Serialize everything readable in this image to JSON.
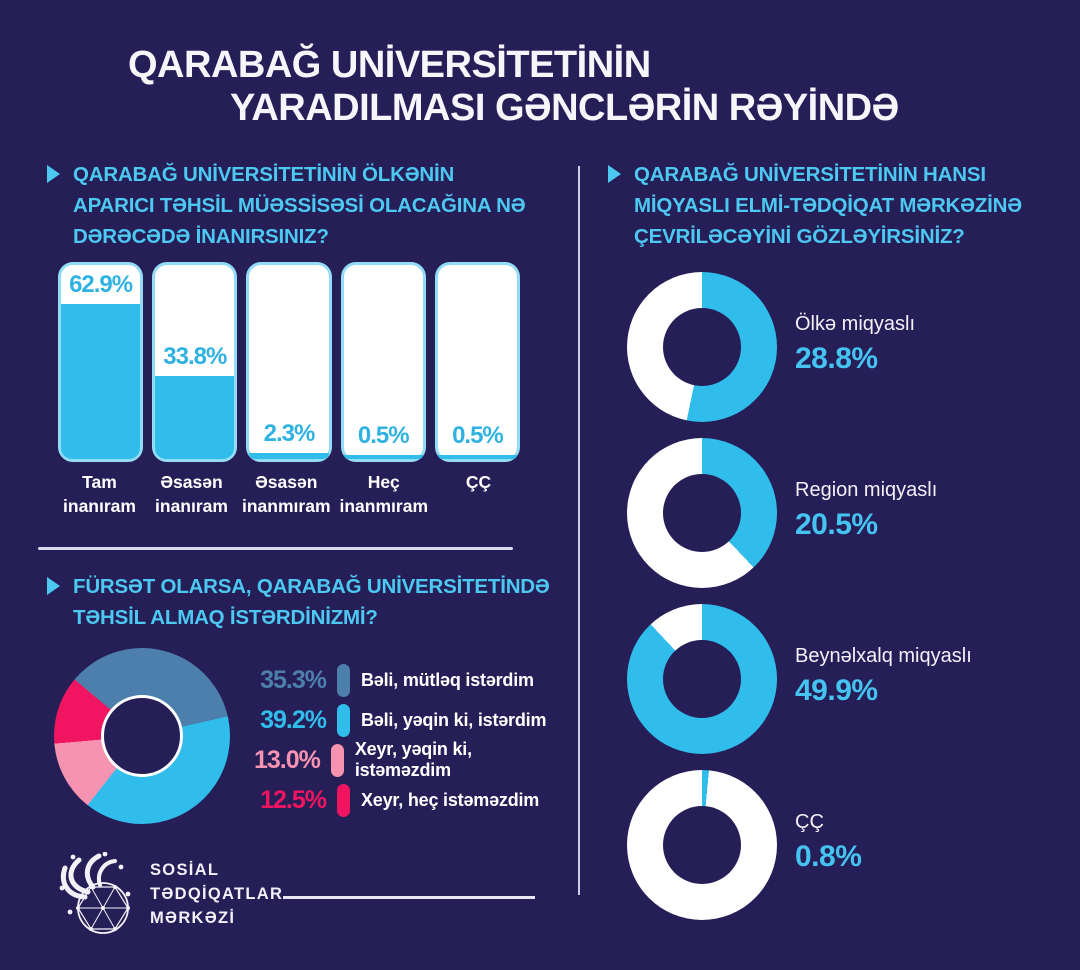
{
  "title": {
    "line1": "QARABAĞ UNİVERSİTETİNİN",
    "line2": "YARADILMASI GƏNCLƏRİN RƏYİNDƏ"
  },
  "colors": {
    "background": "#251e57",
    "cyan": "#31bdeb",
    "steel_blue": "#4d7fad",
    "pink": "#f593b0",
    "crimson": "#f11561",
    "question_cyan": "#4cc8f1",
    "divider": "#dcdaef",
    "white": "#ffffff"
  },
  "chart_data": [
    {
      "id": "belief",
      "type": "bar",
      "title": "QARABAĞ UNİVERSİTETİNİN ÖLKƏNİN APARICI TƏHSİL MÜƏSSİSƏSİ OLACAĞINA NƏ DƏRƏCƏDƏ İNANIRSINIZ?",
      "categories": [
        "Tam inanıram",
        "Əsasən inanıram",
        "Əsasən inanmıram",
        "Heç inanmıram",
        "ÇÇ"
      ],
      "values": [
        62.9,
        33.8,
        2.3,
        0.5,
        0.5
      ],
      "unit": "%",
      "ylim": [
        0,
        100
      ],
      "bar_fill_color": "#31bdeb",
      "bar_bg_color": "#ffffff",
      "grid": false
    },
    {
      "id": "study",
      "type": "pie",
      "title": "FÜRSƏT OLARSA, QARABAĞ UNİVERSİTETİNDƏ TƏHSİL ALMAQ İSTƏRDİNİZMİ?",
      "categories": [
        "Bəli, mütləq istərdim",
        "Bəli, yəqin ki, istərdim",
        "Xeyr, yəqin ki, istəməzdim",
        "Xeyr, heç istəməzdim"
      ],
      "values": [
        35.3,
        39.2,
        13.0,
        12.5
      ],
      "colors": [
        "#4d7fad",
        "#31bdeb",
        "#f593b0",
        "#f11561"
      ],
      "unit": "%",
      "donut": true,
      "legend_position": "right"
    },
    {
      "id": "scale",
      "type": "donut",
      "title": "QARABAĞ UNİVERSİTETİNİN HANSI MİQYASLI ELMİ-TƏDQİQAT MƏRKƏZİNƏ ÇEVRİLƏCƏYİNİ GÖZLƏYİRSİNİZ?",
      "categories": [
        "Ölkə miqyaslı",
        "Region miqyaslı",
        "Beynəlxalq miqyaslı",
        "ÇÇ"
      ],
      "values": [
        28.8,
        20.5,
        49.9,
        0.8
      ],
      "unit": "%",
      "arc_color": "#31bdeb",
      "ring_color": "#ffffff"
    }
  ],
  "footer": {
    "logo_lines": [
      "SOSİAL",
      "TƏDQİQATLAR",
      "MƏRKƏZİ"
    ]
  }
}
